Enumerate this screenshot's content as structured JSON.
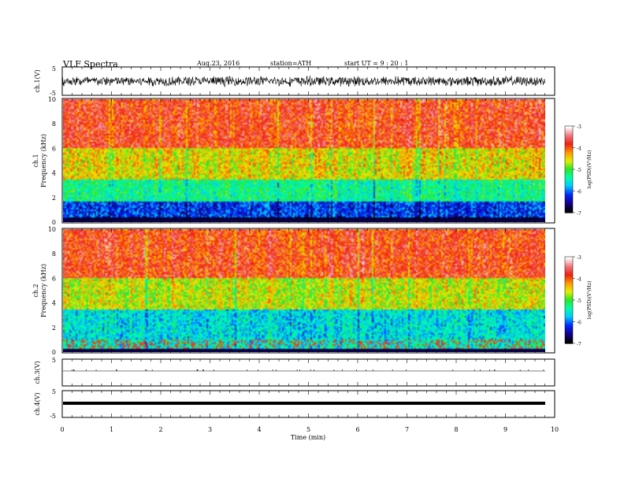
{
  "header": {
    "title": "VLF  Spectra",
    "date": "Aug.23, 2016",
    "station": "station=ATH",
    "start": "start  UT  =   9  : 20 : 1"
  },
  "chart_data": [
    {
      "type": "line",
      "id": "ch1",
      "ylabel": "ch.1(V)",
      "ylim": [
        -5,
        5
      ],
      "yticks": [
        "5",
        "-5"
      ],
      "description_level": 0,
      "noise_amplitude": 2
    },
    {
      "type": "heatmap",
      "id": "spec1",
      "ylabel": "ch.1\nFrequency  (kHz)",
      "ylabel_lines": [
        "ch.1",
        "Frequency  (kHz)"
      ],
      "ylim": [
        0,
        10
      ],
      "yticks": [
        "0",
        "2",
        "4",
        "6",
        "8",
        "10"
      ],
      "colorbar": {
        "label": "log(PSD)(V²/Hz)",
        "ticks": [
          "-3",
          "-4",
          "-5",
          "-6",
          "-7"
        ],
        "range": [
          -7,
          -3
        ]
      },
      "bands_khz": [
        {
          "from": 0,
          "to": 0.3,
          "level": -7
        },
        {
          "from": 0.3,
          "to": 1.6,
          "level": -6.2
        },
        {
          "from": 1.6,
          "to": 3.5,
          "level": -5.3
        },
        {
          "from": 3.5,
          "to": 6,
          "level": -4.5
        },
        {
          "from": 6,
          "to": 10,
          "level": -3.8
        }
      ]
    },
    {
      "type": "heatmap",
      "id": "spec2",
      "ylabel_lines": [
        "ch.2",
        "Frequency  (kHz)"
      ],
      "ylim": [
        0,
        10
      ],
      "yticks": [
        "0",
        "2",
        "4",
        "6",
        "8",
        "10"
      ],
      "colorbar": {
        "label": "log(PSD)(V²/Hz)",
        "ticks": [
          "-3",
          "-4",
          "-5",
          "-6",
          "-7"
        ],
        "range": [
          -7,
          -3
        ]
      },
      "bands_khz": [
        {
          "from": 0,
          "to": 1.0,
          "level": -5.5
        },
        {
          "from": 1.0,
          "to": 3.5,
          "level": -5.6
        },
        {
          "from": 3.5,
          "to": 6,
          "level": -4.6
        },
        {
          "from": 6,
          "to": 10,
          "level": -3.8
        }
      ]
    },
    {
      "type": "line",
      "id": "ch3",
      "ylabel": "ch.3(V)",
      "ylim": [
        -5,
        5
      ],
      "yticks": [
        "5"
      ],
      "level": 0
    },
    {
      "type": "line",
      "id": "ch4",
      "ylabel": "ch.4(V)",
      "ylim": [
        -5,
        5
      ],
      "yticks": [
        "5",
        "-5"
      ],
      "level": 0
    }
  ],
  "xaxis": {
    "label": "Time  (min)",
    "xlim": [
      0,
      10
    ],
    "ticks": [
      "0",
      "1",
      "2",
      "3",
      "4",
      "5",
      "6",
      "7",
      "8",
      "9",
      "10"
    ],
    "data_end": 9.8
  }
}
